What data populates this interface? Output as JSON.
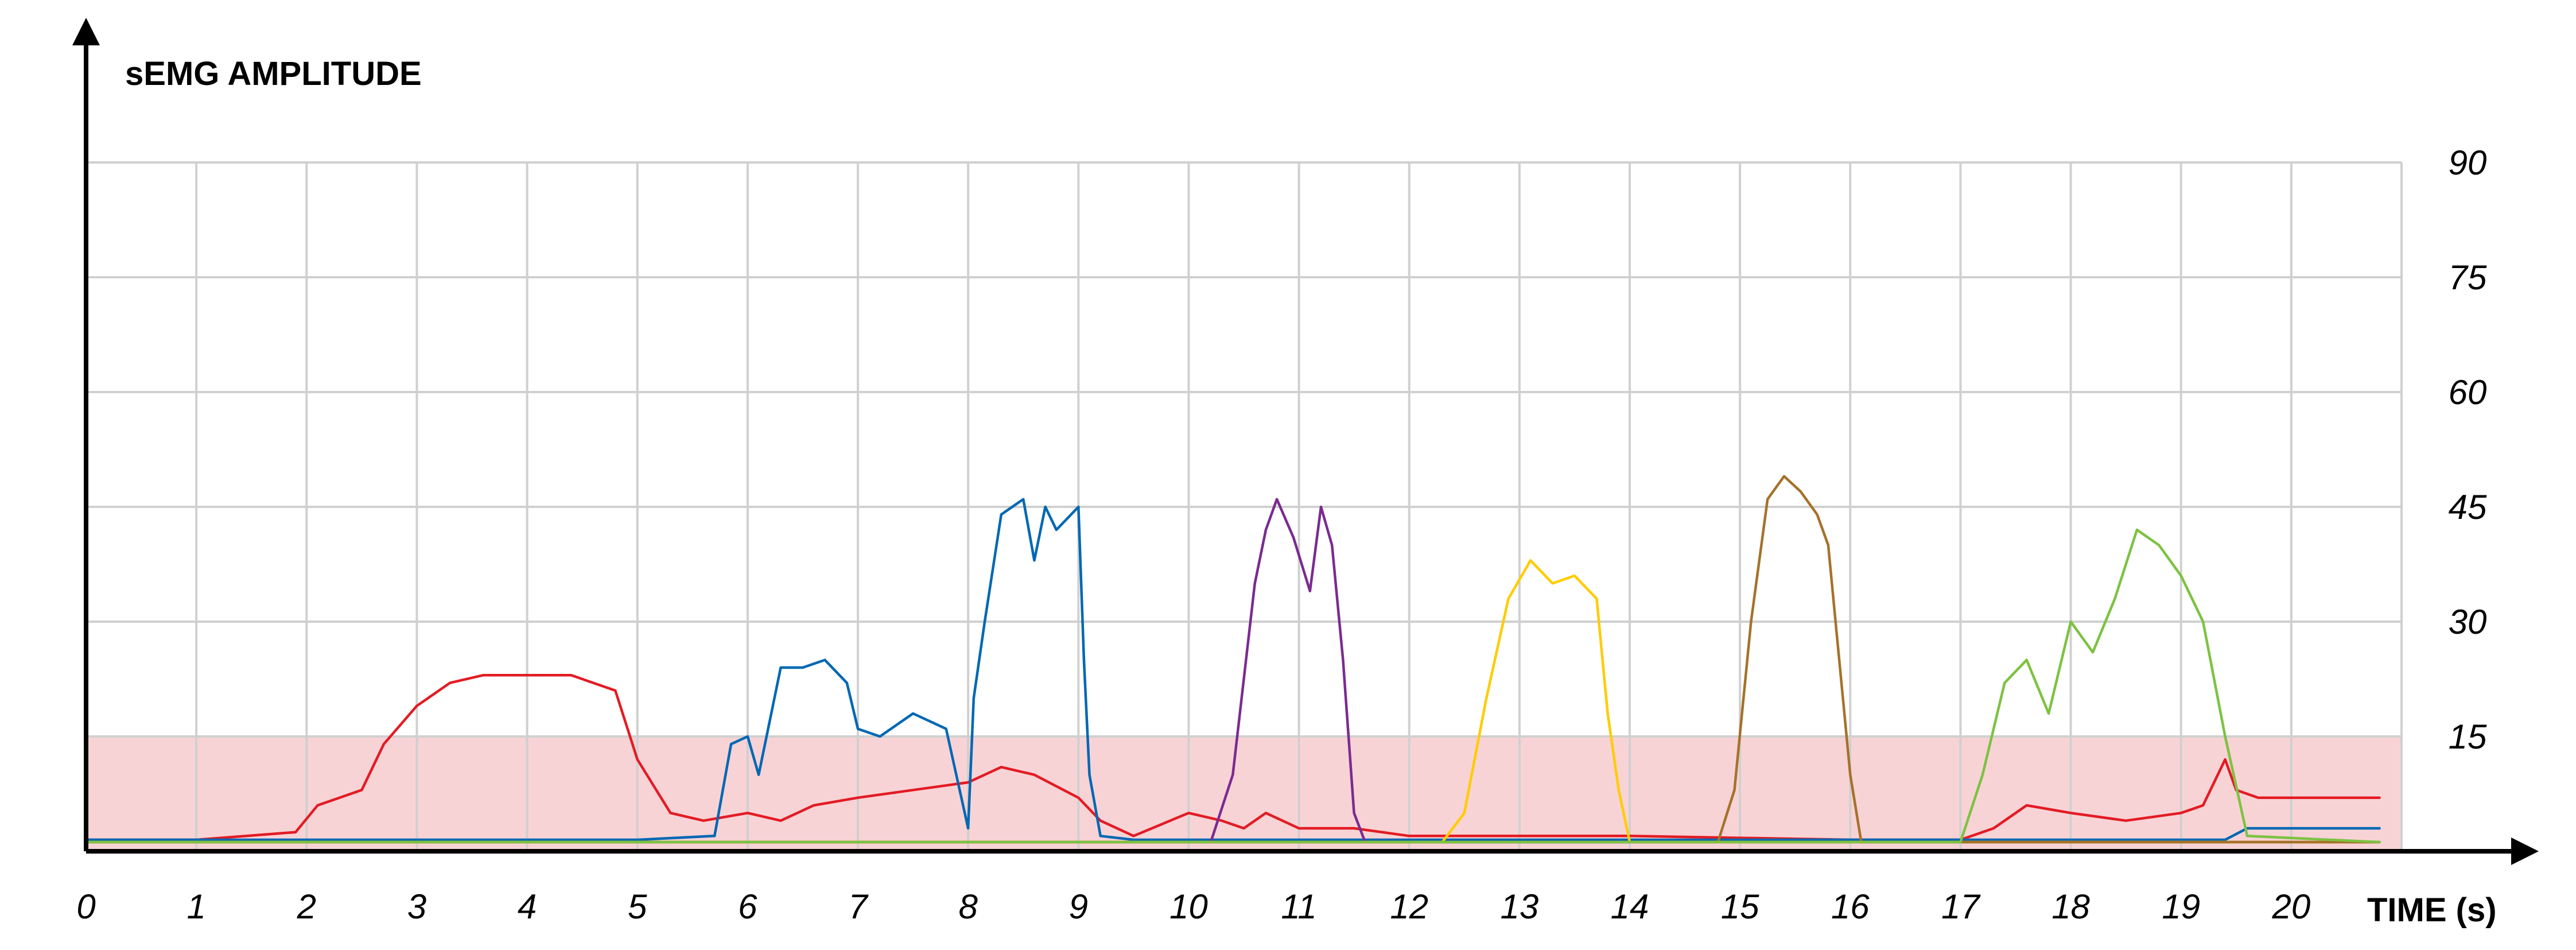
{
  "chart_data": {
    "type": "line",
    "ylabel": "sEMG AMPLITUDE",
    "xlabel": "TIME (s)",
    "xlim": [
      0,
      21
    ],
    "ylim": [
      0,
      90
    ],
    "x_ticks": [
      0,
      1,
      2,
      3,
      4,
      5,
      6,
      7,
      8,
      9,
      10,
      11,
      12,
      13,
      14,
      15,
      16,
      17,
      18,
      19,
      20
    ],
    "y_ticks": [
      15,
      30,
      45,
      60,
      75,
      90
    ],
    "y_tick_side": "right",
    "grid": true,
    "threshold_band": {
      "y_from": 0,
      "y_to": 15,
      "color": "#f8d3d6"
    },
    "series": [
      {
        "color": "#e31b23",
        "x": [
          0,
          1,
          1.9,
          2.1,
          2.5,
          2.7,
          3.0,
          3.3,
          3.6,
          4.0,
          4.4,
          4.8,
          5.0,
          5.3,
          5.6,
          6.0,
          6.3,
          6.6,
          7.0,
          7.5,
          8.0,
          8.3,
          8.6,
          9.0,
          9.2,
          9.5,
          10.0,
          10.3,
          10.5,
          10.7,
          11.0,
          11.5,
          12,
          14,
          16,
          17,
          17.3,
          17.6,
          18.0,
          18.5,
          19.0,
          19.2,
          19.4,
          19.5,
          19.7,
          20,
          20.8
        ],
        "y": [
          1.5,
          1.5,
          2.5,
          6,
          8,
          14,
          19,
          22,
          23,
          23,
          23,
          21,
          12,
          5,
          4,
          5,
          4,
          6,
          7,
          8,
          9,
          11,
          10,
          7,
          4,
          2,
          5,
          4,
          3,
          5,
          3,
          3,
          2,
          2,
          1.5,
          1.5,
          3,
          6,
          5,
          4,
          5,
          6,
          12,
          8,
          7,
          7,
          7
        ]
      },
      {
        "color": "#0068b3",
        "x": [
          0,
          5.0,
          5.7,
          5.85,
          6.0,
          6.1,
          6.3,
          6.5,
          6.7,
          6.9,
          7.0,
          7.2,
          7.5,
          7.8,
          8.0,
          8.05,
          8.15,
          8.3,
          8.5,
          8.6,
          8.7,
          8.8,
          9.0,
          9.05,
          9.1,
          9.2,
          9.5,
          12,
          16,
          19.4,
          19.6,
          20.8
        ],
        "y": [
          1.5,
          1.5,
          2,
          14,
          15,
          10,
          24,
          24,
          25,
          22,
          16,
          15,
          18,
          16,
          3,
          20,
          30,
          44,
          46,
          38,
          45,
          42,
          45,
          25,
          10,
          2,
          1.5,
          1.5,
          1.5,
          1.5,
          3,
          3
        ]
      },
      {
        "color": "#7b2b90",
        "x": [
          0,
          10.2,
          10.4,
          10.6,
          10.7,
          10.8,
          10.95,
          11.1,
          11.2,
          11.3,
          11.4,
          11.5,
          11.6,
          20.8
        ],
        "y": [
          1.2,
          1.2,
          10,
          35,
          42,
          46,
          41,
          34,
          45,
          40,
          25,
          5,
          1.2,
          1.2
        ]
      },
      {
        "color": "#ffcc00",
        "x": [
          0,
          12.3,
          12.5,
          12.7,
          12.9,
          13.1,
          13.3,
          13.5,
          13.7,
          13.8,
          13.9,
          14.0,
          20.8
        ],
        "y": [
          1.2,
          1.2,
          5,
          20,
          33,
          38,
          35,
          36,
          33,
          18,
          8,
          1.2,
          1.2
        ]
      },
      {
        "color": "#a5722a",
        "x": [
          0,
          14.8,
          14.95,
          15.1,
          15.25,
          15.4,
          15.55,
          15.7,
          15.8,
          15.9,
          16.0,
          16.1,
          20.8
        ],
        "y": [
          1.2,
          1.2,
          8,
          30,
          46,
          49,
          47,
          44,
          40,
          25,
          10,
          1.2,
          1.2
        ]
      },
      {
        "color": "#7dc242",
        "x": [
          0,
          17.0,
          17.2,
          17.4,
          17.6,
          17.8,
          18.0,
          18.2,
          18.4,
          18.6,
          18.8,
          19.0,
          19.2,
          19.4,
          19.6,
          20.8
        ],
        "y": [
          1.2,
          1.2,
          10,
          22,
          25,
          18,
          30,
          26,
          33,
          42,
          40,
          36,
          30,
          15,
          2,
          1.2
        ]
      }
    ]
  }
}
